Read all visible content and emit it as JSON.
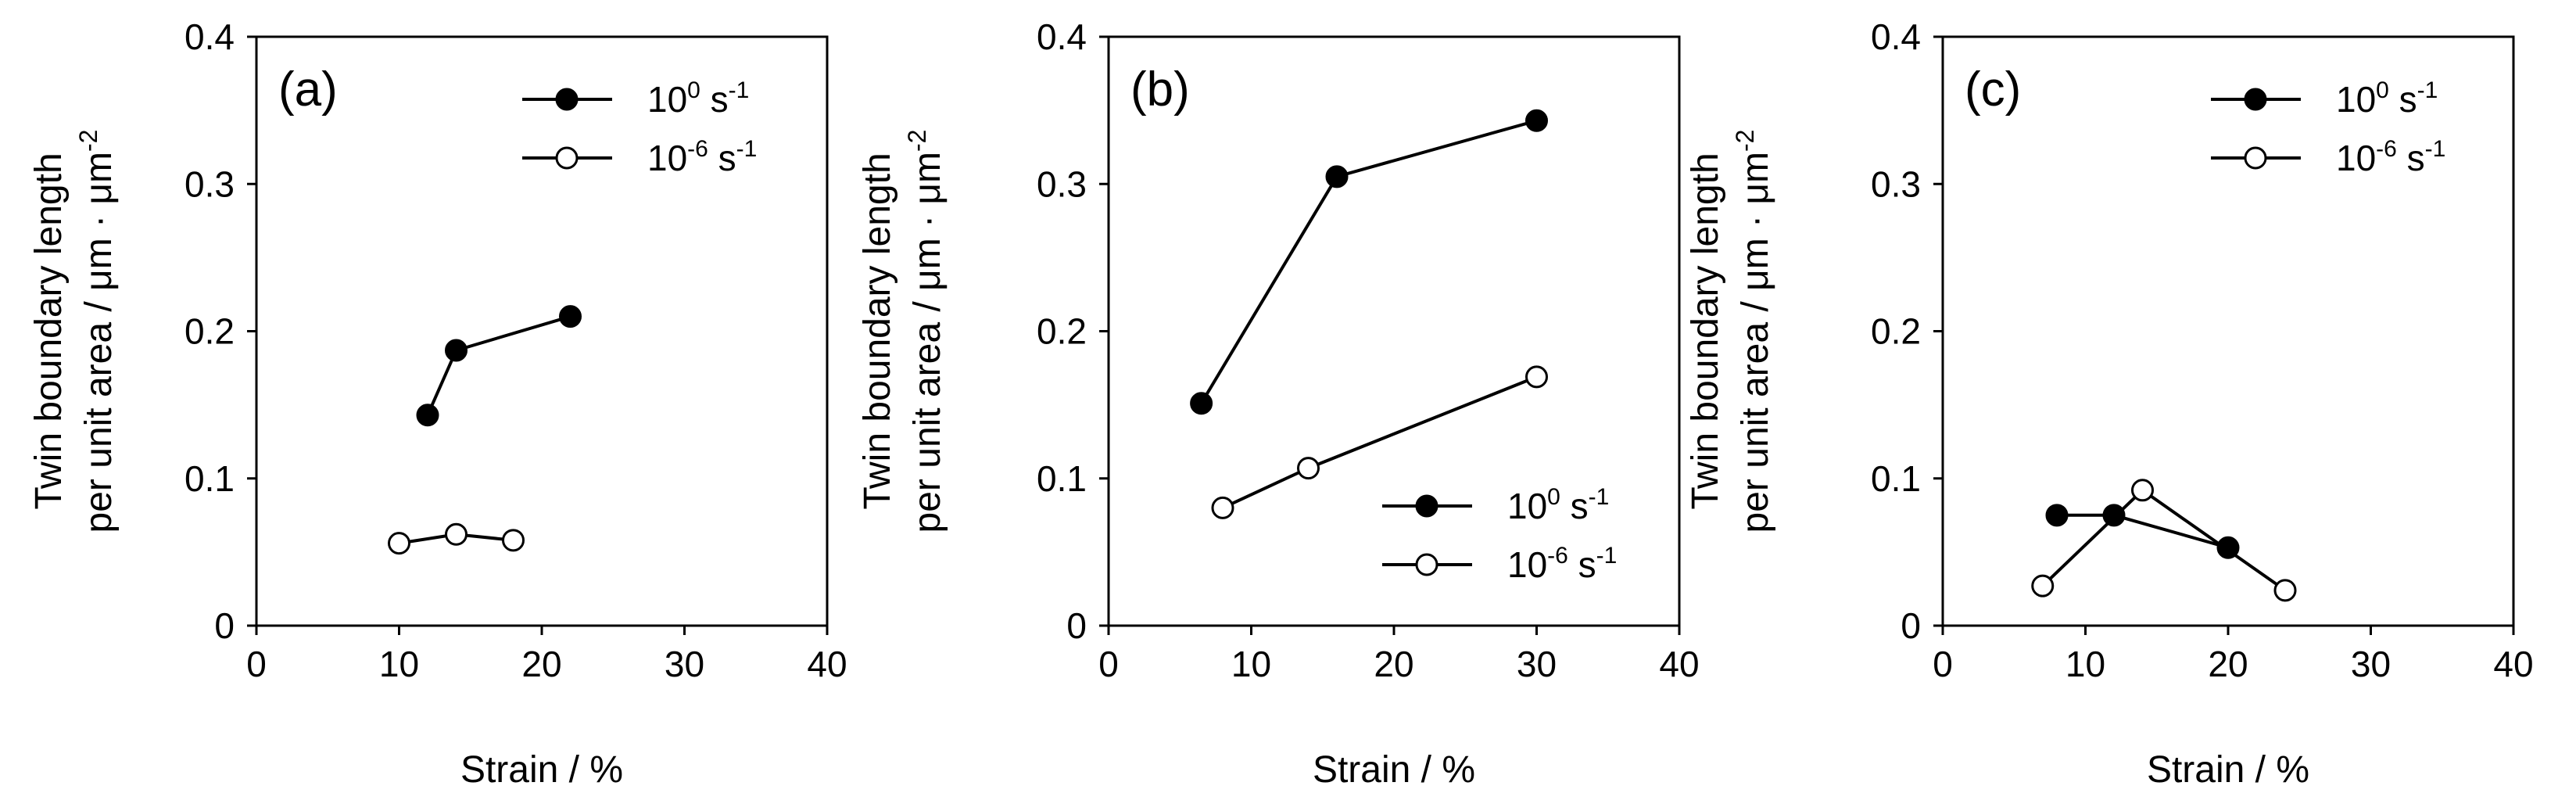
{
  "chart_data": [
    {
      "type": "line",
      "panel_label": "(a)",
      "xlabel": "Strain / %",
      "ylabel": [
        "Twin boundary length",
        "per unit area / μm · μm"
      ],
      "ylabel_superscript": "-2",
      "xlim": [
        0,
        40
      ],
      "ylim": [
        0,
        0.4
      ],
      "xticks": [
        "0",
        "10",
        "20",
        "30",
        "40"
      ],
      "yticks": [
        "0",
        "0.1",
        "0.2",
        "0.3",
        "0.4"
      ],
      "legend_position": "top-right",
      "series": [
        {
          "name": "10",
          "sup1": "0",
          "unit": " s",
          "sup2": "-1",
          "marker": "filled",
          "x": [
            12,
            14,
            22
          ],
          "y": [
            0.143,
            0.187,
            0.21
          ]
        },
        {
          "name": "10",
          "sup1": "-6",
          "unit": " s",
          "sup2": "-1",
          "marker": "open",
          "x": [
            10,
            14,
            18
          ],
          "y": [
            0.056,
            0.062,
            0.058
          ]
        }
      ]
    },
    {
      "type": "line",
      "panel_label": "(b)",
      "xlabel": "Strain / %",
      "ylabel": [
        "Twin boundary length",
        "per unit area / μm · μm"
      ],
      "ylabel_superscript": "-2",
      "xlim": [
        0,
        40
      ],
      "ylim": [
        0,
        0.4
      ],
      "xticks": [
        "0",
        "10",
        "20",
        "30",
        "40"
      ],
      "yticks": [
        "0",
        "0.1",
        "0.2",
        "0.3",
        "0.4"
      ],
      "legend_position": "bottom-right",
      "series": [
        {
          "name": "10",
          "sup1": "0",
          "unit": " s",
          "sup2": "-1",
          "marker": "filled",
          "x": [
            6.5,
            16,
            30
          ],
          "y": [
            0.151,
            0.305,
            0.343
          ]
        },
        {
          "name": "10",
          "sup1": "-6",
          "unit": " s",
          "sup2": "-1",
          "marker": "open",
          "x": [
            8,
            14,
            30
          ],
          "y": [
            0.08,
            0.107,
            0.169
          ]
        }
      ]
    },
    {
      "type": "line",
      "panel_label": "(c)",
      "xlabel": "Strain / %",
      "ylabel": [
        "Twin boundary length",
        "per unit area / μm · μm"
      ],
      "ylabel_superscript": "-2",
      "xlim": [
        0,
        40
      ],
      "ylim": [
        0,
        0.4
      ],
      "xticks": [
        "0",
        "10",
        "20",
        "30",
        "40"
      ],
      "yticks": [
        "0",
        "0.1",
        "0.2",
        "0.3",
        "0.4"
      ],
      "legend_position": "top-right",
      "series": [
        {
          "name": "10",
          "sup1": "0",
          "unit": " s",
          "sup2": "-1",
          "marker": "filled",
          "x": [
            8,
            12,
            20
          ],
          "y": [
            0.075,
            0.075,
            0.053
          ]
        },
        {
          "name": "10",
          "sup1": "-6",
          "unit": " s",
          "sup2": "-1",
          "marker": "open",
          "x": [
            7,
            14,
            24
          ],
          "y": [
            0.027,
            0.092,
            0.024
          ]
        }
      ]
    }
  ]
}
